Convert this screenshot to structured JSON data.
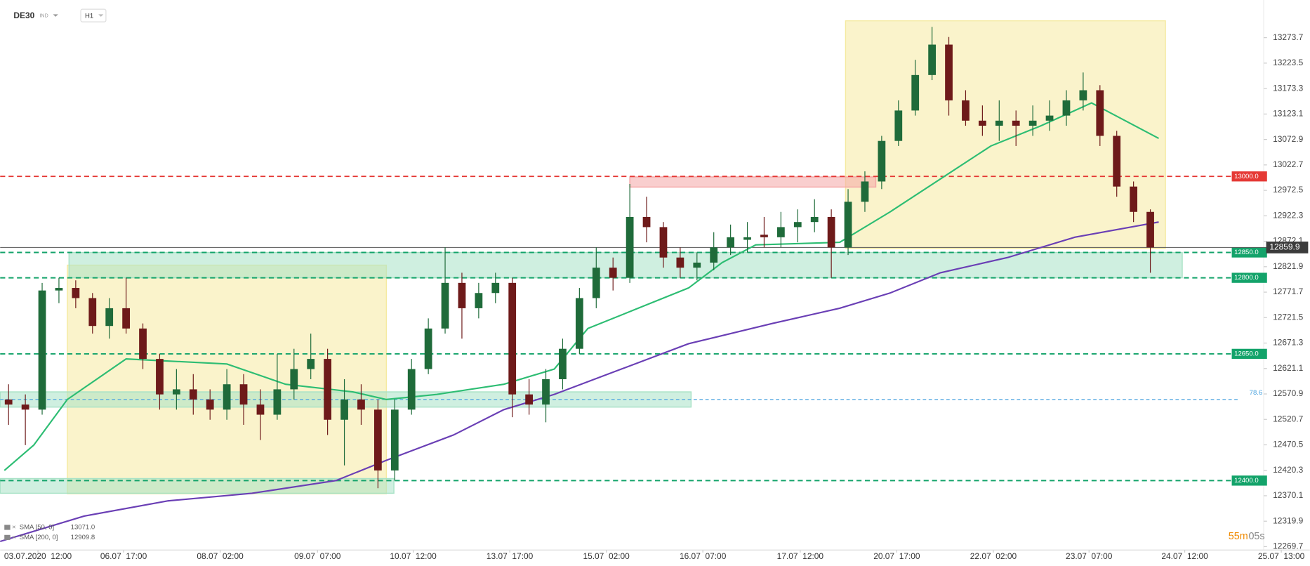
{
  "chart_data": {
    "type": "candlestick",
    "symbol": "DE30",
    "instrument_type": "IND",
    "interval": "H1",
    "xlim": [
      0,
      78
    ],
    "xticks": [
      {
        "value": 2.25,
        "label": "03.07.2020  12:00"
      },
      {
        "value": 7.35,
        "label": "06.07  17:00"
      },
      {
        "value": 13.1,
        "label": "08.07  02:00"
      },
      {
        "value": 18.9,
        "label": "09.07  07:00"
      },
      {
        "value": 24.6,
        "label": "10.07  12:00"
      },
      {
        "value": 30.35,
        "label": "13.07  17:00"
      },
      {
        "value": 36.1,
        "label": "15.07  02:00"
      },
      {
        "value": 41.85,
        "label": "16.07  07:00"
      },
      {
        "value": 47.65,
        "label": "17.07  12:00"
      },
      {
        "value": 53.4,
        "label": "20.07  17:00"
      },
      {
        "value": 59.15,
        "label": "22.07  02:00"
      },
      {
        "value": 64.85,
        "label": "23.07  07:00"
      },
      {
        "value": 70.55,
        "label": "24.07  12:00"
      },
      {
        "value": 76.3,
        "label": "25.07  13:00"
      }
    ],
    "ylim": [
      12263,
      13348
    ],
    "yticks": [
      12269.7,
      12319.9,
      12370.1,
      12420.3,
      12470.5,
      12520.7,
      12570.9,
      12621.1,
      12671.3,
      12721.5,
      12771.7,
      12821.9,
      12872.1,
      12922.3,
      12972.5,
      13022.7,
      13072.9,
      13123.1,
      13173.3,
      13223.5,
      13273.7
    ],
    "up_color": "#1f6b3a",
    "down_color": "#6e1a1a",
    "open": [
      12560,
      12550,
      12540,
      12775,
      12780,
      12760,
      12705,
      12740,
      12700,
      12640,
      12570,
      12580,
      12560,
      12540,
      12590,
      12550,
      12530,
      12580,
      12620,
      12640,
      12520,
      12560,
      12540,
      12420,
      12540,
      12620,
      12700,
      12790,
      12740,
      12770,
      12790,
      12570,
      12550,
      12600,
      12660,
      12760,
      12820,
      12800,
      12920,
      12900,
      12840,
      12820,
      12830,
      12860,
      12875,
      12885,
      12880,
      12900,
      12910,
      12920,
      12860,
      12950,
      12990,
      13070,
      13130,
      13200,
      13260,
      13150,
      13110,
      13100,
      13110,
      13100,
      13110,
      13120,
      13150,
      13170,
      13080,
      12980,
      12930
    ],
    "high": [
      12590,
      12570,
      12790,
      12800,
      12795,
      12770,
      12760,
      12800,
      12710,
      12650,
      12620,
      12610,
      12580,
      12620,
      12610,
      12580,
      12650,
      12660,
      12690,
      12660,
      12600,
      12590,
      12560,
      12560,
      12640,
      12720,
      12860,
      12810,
      12790,
      12810,
      12800,
      12600,
      12620,
      12680,
      12780,
      12860,
      12840,
      12985,
      12960,
      12910,
      12860,
      12850,
      12890,
      12905,
      12910,
      12920,
      12930,
      12935,
      12955,
      12935,
      12975,
      13010,
      13080,
      13150,
      13230,
      13295,
      13275,
      13170,
      13140,
      13150,
      13130,
      13140,
      13150,
      13170,
      13205,
      13180,
      13090,
      12990,
      12935
    ],
    "low": [
      12510,
      12470,
      12530,
      12750,
      12740,
      12690,
      12680,
      12690,
      12620,
      12540,
      12540,
      12530,
      12520,
      12520,
      12510,
      12480,
      12520,
      12560,
      12600,
      12490,
      12430,
      12510,
      12385,
      12400,
      12530,
      12610,
      12690,
      12680,
      12720,
      12750,
      12525,
      12530,
      12515,
      12580,
      12650,
      12740,
      12775,
      12790,
      12870,
      12820,
      12800,
      12795,
      12815,
      12845,
      12850,
      12860,
      12860,
      12870,
      12890,
      12800,
      12845,
      12930,
      12975,
      13060,
      13120,
      13190,
      13120,
      13100,
      13080,
      13070,
      13060,
      13080,
      13090,
      13100,
      13130,
      13060,
      12960,
      12910,
      12810
    ],
    "close": [
      12550,
      12540,
      12775,
      12780,
      12760,
      12705,
      12740,
      12700,
      12640,
      12570,
      12580,
      12560,
      12540,
      12590,
      12550,
      12530,
      12580,
      12620,
      12640,
      12520,
      12560,
      12540,
      12420,
      12540,
      12620,
      12700,
      12790,
      12740,
      12770,
      12790,
      12570,
      12550,
      12600,
      12660,
      12760,
      12820,
      12800,
      12920,
      12900,
      12840,
      12820,
      12830,
      12860,
      12880,
      12880,
      12880,
      12900,
      12910,
      12920,
      12860,
      12950,
      12990,
      13070,
      13130,
      13200,
      13260,
      13150,
      13110,
      13100,
      13110,
      13100,
      13110,
      13120,
      13150,
      13170,
      13080,
      12980,
      12930,
      12859.9
    ],
    "lines": [
      {
        "name": "SMA [50, 0]",
        "legend_value": {
          "value": 13071,
          "label": "13071.0"
        },
        "color": "#2dbd73",
        "x": [
          0.25,
          2,
          4,
          7.5,
          13.5,
          17,
          21,
          23,
          26,
          30,
          33,
          35,
          38,
          41,
          43,
          45,
          50,
          53,
          56,
          59,
          62,
          65,
          67,
          69
        ],
        "values": [
          12420,
          12470,
          12560,
          12640,
          12630,
          12590,
          12575,
          12560,
          12570,
          12590,
          12620,
          12700,
          12740,
          12780,
          12830,
          12865,
          12870,
          12930,
          12995,
          13060,
          13100,
          13145,
          13110,
          13075
        ]
      },
      {
        "name": "SMA [200, 0]",
        "legend_value": 12909.8,
        "color": "#6a3fb5",
        "x": [
          0,
          5,
          10,
          15,
          20,
          23,
          27,
          30,
          33,
          37,
          41,
          46,
          50,
          53,
          56,
          60,
          64,
          69
        ],
        "values": [
          12280,
          12330,
          12360,
          12375,
          12400,
          12440,
          12490,
          12540,
          12570,
          12620,
          12670,
          12710,
          12740,
          12770,
          12810,
          12840,
          12880,
          12910
        ]
      }
    ],
    "zones": [
      {
        "x": [
          4,
          23
        ],
        "y": [
          12374,
          12825
        ],
        "color": "#f5eaa0"
      },
      {
        "x": [
          50.35,
          69.4
        ],
        "y": [
          12858,
          13307
        ],
        "color": "#f5eaa0"
      },
      {
        "x": [
          4.1,
          70.4
        ],
        "y": [
          12800,
          12850
        ],
        "color": "#a8e2c6"
      },
      {
        "x": [
          0,
          41.15
        ],
        "y": [
          12545,
          12575
        ],
        "color": "#a8e2c6"
      },
      {
        "x": [
          0,
          23.45
        ],
        "y": [
          12375,
          12404
        ],
        "color": "#a8e2c6"
      },
      {
        "x": [
          37.5,
          52.15
        ],
        "y": [
          12979,
          12999
        ],
        "color": "#f4a6a6"
      }
    ],
    "levels": [
      {
        "value": 13000,
        "label": "13000.0",
        "color": "#e53935"
      },
      {
        "value": 12850,
        "label": "12850.0",
        "color": "#13a36a"
      },
      {
        "value": 12800,
        "label": "12800.0",
        "color": "#13a36a"
      },
      {
        "value": 12650,
        "label": "12650.0",
        "color": "#13a36a"
      },
      {
        "value": 12400,
        "label": "12400.0",
        "color": "#13a36a"
      }
    ],
    "fib": {
      "name": "78.6",
      "value": 12560,
      "color": "#4aa3df"
    },
    "current_price": 12859.9,
    "timer_minutes": "55m",
    "timer_seconds": "05s"
  }
}
